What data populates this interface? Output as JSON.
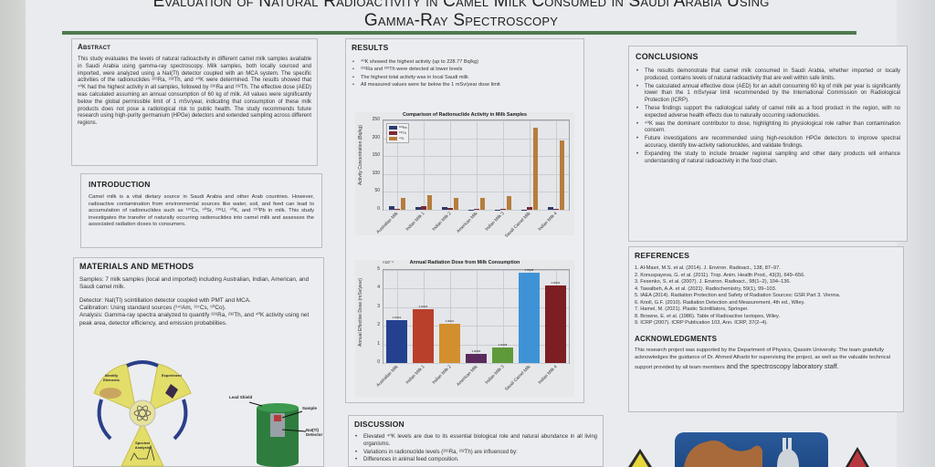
{
  "title": {
    "line1": "Evaluation of Natural Radioactivity in Camel Milk Consumed in Saudi Arabia Using",
    "line2": "Gamma-Ray Spectroscopy"
  },
  "abstract": {
    "heading": "Abstract",
    "text": "This study evaluates the levels of natural radioactivity in different camel milk samples available in Saudi Arabia using gamma-ray spectroscopy. Milk samples, both locally sourced and imported, were analyzed using a NaI(Tl) detector coupled with an MCA system. The specific activities of the radionuclides ²²⁶Ra, ²³²Th, and ⁴⁰K were determined. The results showed that ⁴⁰K had the highest activity in all samples, followed by ²²⁶Ra and ²³²Th. The effective dose (AED) was calculated assuming an annual consumption of 60 kg of milk. All values were significantly below the global permissible limit of 1 mSv/year, indicating that consumption of these milk products does not pose a radiological risk to public health. The study recommends future research using high-purity germanium (HPGe) detectors and extended sampling across different regions."
  },
  "introduction": {
    "heading": "INTRODUCTION",
    "text": "Camel milk is a vital dietary source in Saudi Arabia and other Arab countries. However, radioactive contamination from environmental sources like water, soil, and feed can lead to accumulation of radionuclides such as ¹³⁷Cs, ⁹⁰Sr, ²³⁸U, ⁴⁰K, and ²¹⁰Pb in milk. This study investigates the transfer of naturally occurring radionuclides into camel milk and assesses the associated radiation doses to consumers."
  },
  "methods": {
    "heading": "MATERIALS AND METHODS",
    "samples": "Samples: 7 milk samples (local and imported) including Australian, Indian, American, and Saudi camel milk.",
    "detector": "Detector: NaI(Tl) scintillation detector coupled with PMT and MCA.",
    "calibration": "Calibration: Using standard sources (²⁴¹Am, ¹³⁷Cs, ⁶⁰Co).",
    "analysis": "Analysis: Gamma-ray spectra analyzed to quantify ²²⁶Ra, ²³²Th, and ⁴⁰K activity using net peak area, detector efficiency, and emission probabilities.",
    "cycle": {
      "identify": "Identify Elements",
      "experiment": "Experiment",
      "spectral": "Spectral Analysis"
    },
    "detector_diagram": {
      "lead_shield": "Lead Shield",
      "sample": "Sample",
      "detector": "NaI(Tl) Detector"
    }
  },
  "results": {
    "heading": "RESULTS",
    "bullets": [
      "⁴⁰K showed the highest activity (up to 228.77 Bq/kg)",
      "²²⁶Ra and ²³²Th were detected at lower levels",
      "The highest total activity was in local Saudi milk",
      "All measured values were far below the 1 mSv/year dose limit"
    ]
  },
  "chart_data": [
    {
      "type": "bar",
      "title": "Comparison of Radionuclide Activity in Milk Samples",
      "xlabel": "",
      "ylabel": "Activity Concentration (Bq/kg)",
      "ylim": [
        0,
        250
      ],
      "yticks": [
        "0",
        "50",
        "100",
        "150",
        "200",
        "250"
      ],
      "grid": true,
      "legend_position": "upper left",
      "categories": [
        "Australian Milk",
        "Indian Milk 1",
        "Indian Milk 2",
        "American Milk",
        "Indian Milk 3",
        "Saudi Camel Milk",
        "Indian Milk 4"
      ],
      "series": [
        {
          "name": "²²⁶Ra",
          "color": "#2b3a6e",
          "values": [
            9,
            8,
            7,
            1,
            1,
            1,
            7
          ]
        },
        {
          "name": "²³²Th",
          "color": "#7a2a35",
          "values": [
            3,
            9,
            5,
            2,
            2,
            7,
            3
          ]
        },
        {
          "name": "⁴⁰K",
          "color": "#b67d3d",
          "values": [
            34,
            42,
            33,
            34,
            38,
            228.77,
            193
          ]
        }
      ]
    },
    {
      "type": "bar",
      "title": "Annual Radiation Dose from Milk Consumption",
      "xlabel": "",
      "ylabel": "Annual Effective Dose (mSv/year)",
      "y_scale_note": "×10⁻⁴",
      "ylim": [
        0,
        5
      ],
      "yticks": [
        "0",
        "1",
        "2",
        "3",
        "4",
        "5"
      ],
      "grid": true,
      "categories": [
        "Australian Milk",
        "Indian Milk 1",
        "Indian Milk 2",
        "American Milk",
        "Indian Milk 3",
        "Saudi Camel Milk",
        "Indian Milk 4"
      ],
      "values": [
        2.3,
        2.9,
        2.1,
        0.5,
        0.85,
        4.85,
        4.15
      ],
      "colors": [
        "#23418f",
        "#b9402b",
        "#d28f2e",
        "#5a2a5c",
        "#5e9a3a",
        "#3e93d6",
        "#7d1e22"
      ]
    }
  ],
  "discussion": {
    "heading": "DISCUSSION",
    "bullets": [
      "Elevated ⁴⁰K levels are due to its essential biological role and natural abundance in all living organisms.",
      "Variations in radionuclide levels (²²⁶Ra, ²³²Th) are influenced by:",
      "Differences in animal feed composition."
    ]
  },
  "conclusions": {
    "heading": "CONCLUSIONS",
    "bullets": [
      "The results demonstrate that camel milk consumed in Saudi Arabia, whether imported or locally produced, contains levels of natural radioactivity that are well within safe limits.",
      "The calculated annual effective dose (AED) for an adult consuming 60 kg of milk per year is significantly lower than the 1 mSv/year limit recommended by the International Commission on Radiological Protection (ICRP).",
      "These findings support the radiological safety of camel milk as a food product in the region, with no expected adverse health effects due to naturally occurring radionuclides.",
      "⁴⁰K was the dominant contributor to dose, highlighting its physiological role rather than contamination concern.",
      "Future investigations are recommended using high-resolution HPGe detectors to improve spectral accuracy, identify low-activity radionuclides, and validate findings.",
      "Expanding the study to include broader regional sampling and other dairy products will enhance understanding of natural radioactivity in the food chain."
    ]
  },
  "references": {
    "heading": "REFERENCES",
    "items": [
      "1. Al-Masri, M.S. et al. (2014). J. Environ. Radioact., 138, 87–97.",
      "2. Konuspayeva, G. et al. (2011). Trop. Anim. Health Prod., 43(3), 649–656.",
      "3. Fesenko, S. et al. (2007). J. Environ. Radioact., 98(1–2), 104–136.",
      "4. Tawalbeh, A.A. et al. (2021). Radiochemistry, 59(1), 99–103.",
      "5. IAEA (2014). Radiation Protection and Safety of Radiation Sources: GSR Part 3. Vienna.",
      "6. Knoll, G.F. (2010). Radiation Detection and Measurement, 4th ed., Wiley.",
      "7. Hamel, M. (2021). Plastic Scintillators, Springer.",
      "8. Browne, E. et al. (1986). Table of Radioactive Isotopes, Wiley.",
      "9. ICRP (2007). ICRP Publication 103, Ann. ICRP, 37(2–4)."
    ]
  },
  "acknowledgments": {
    "heading": "ACKNOWLEDGMENTS",
    "text": "This research project was supported by the Department of Physics, Qassim University. The team gratefully acknowledges the guidance of Dr. Ahmed Alharbi for supervising the project, as well as the valuable technical support provided by all team members",
    "text_big": " and the spectroscopy laboratory staff."
  }
}
